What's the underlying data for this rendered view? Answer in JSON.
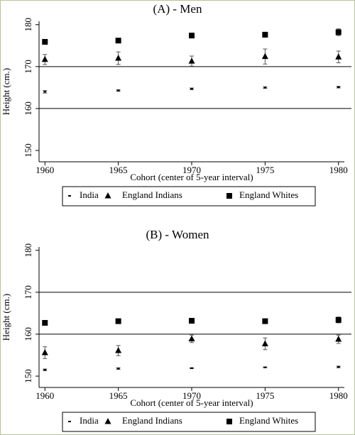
{
  "chart_data": [
    {
      "type": "scatter",
      "title": "(A) - Men",
      "xlabel": "Cohort (center of 5-year interval)",
      "ylabel": "Height (cm.)",
      "x": [
        1960,
        1965,
        1970,
        1975,
        1980
      ],
      "xlim": [
        1959.6,
        1980.4
      ],
      "xticks": [
        1960,
        1965,
        1970,
        1975,
        1980
      ],
      "ylim": [
        147.3,
        180.8
      ],
      "yticks": [
        150,
        160,
        170,
        180
      ],
      "ref_lines": [
        160,
        170
      ],
      "series": [
        {
          "name": "India",
          "color": "#000000",
          "marker": "dot",
          "values": [
            164.0,
            164.3,
            164.7,
            165.0,
            165.1
          ],
          "errors": [
            0.3,
            0.2,
            0.2,
            0.2,
            0.2
          ]
        },
        {
          "name": "England Indians",
          "color": "#000000",
          "marker": "triangle",
          "values": [
            171.7,
            172.0,
            171.3,
            172.4,
            172.3
          ],
          "errors": [
            1.2,
            1.5,
            1.2,
            1.8,
            1.4
          ]
        },
        {
          "name": "England Whites",
          "color": "#000000",
          "marker": "square",
          "values": [
            175.9,
            176.2,
            177.4,
            177.6,
            178.2
          ],
          "errors": [
            0.5,
            0.5,
            0.4,
            0.6,
            0.8
          ]
        }
      ]
    },
    {
      "type": "scatter",
      "title": "(B) - Women",
      "xlabel": "Cohort (center of 5-year interval)",
      "ylabel": "Height (cm.)",
      "x": [
        1960,
        1965,
        1970,
        1975,
        1980
      ],
      "xlim": [
        1959.6,
        1980.4
      ],
      "xticks": [
        1960,
        1965,
        1970,
        1975,
        1980
      ],
      "ylim": [
        147.3,
        180.8
      ],
      "yticks": [
        150,
        160,
        170,
        180
      ],
      "ref_lines": [
        160,
        170
      ],
      "series": [
        {
          "name": "India",
          "color": "#000000",
          "marker": "dot",
          "values": [
            151.5,
            151.8,
            151.9,
            152.1,
            152.2
          ],
          "errors": [
            0.2,
            0.2,
            0.1,
            0.1,
            0.2
          ]
        },
        {
          "name": "England Indians",
          "color": "#000000",
          "marker": "triangle",
          "values": [
            155.6,
            156.1,
            158.9,
            157.7,
            158.8
          ],
          "errors": [
            1.4,
            1.2,
            0.9,
            1.4,
            1.0
          ]
        },
        {
          "name": "England Whites",
          "color": "#000000",
          "marker": "square",
          "values": [
            162.7,
            163.1,
            163.2,
            163.1,
            163.4
          ],
          "errors": [
            0.4,
            0.3,
            0.3,
            0.4,
            0.7
          ]
        }
      ]
    }
  ]
}
